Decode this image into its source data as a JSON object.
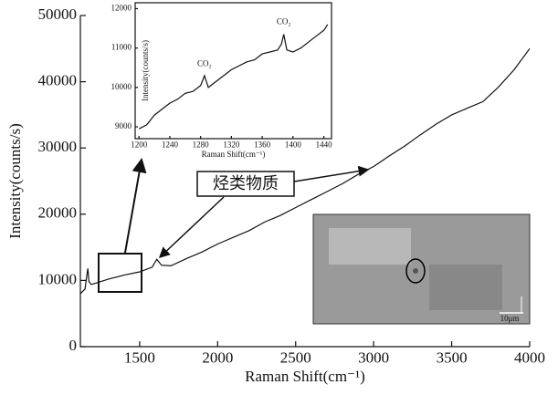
{
  "chart_data": [
    {
      "type": "line",
      "xlabel": "Raman Shift(cm⁻¹)",
      "ylabel": "Intensity(counts/s)",
      "annotations": [
        "烃类物质",
        "10μm"
      ],
      "x": [
        1120,
        1150,
        1160,
        1168,
        1175,
        1190,
        1220,
        1300,
        1400,
        1500,
        1580,
        1610,
        1640,
        1700,
        1800,
        1900,
        2000,
        2100,
        2200,
        2300,
        2400,
        2500,
        2600,
        2700,
        2800,
        2900,
        3000,
        3100,
        3200,
        3300,
        3400,
        3500,
        3600,
        3700,
        3800,
        3900,
        4000
      ],
      "values": [
        8000,
        8700,
        10500,
        11800,
        9800,
        9400,
        9600,
        10200,
        10800,
        11300,
        12000,
        13200,
        12300,
        12200,
        13300,
        14300,
        15500,
        16500,
        17500,
        18800,
        19800,
        21000,
        22200,
        23400,
        24600,
        26000,
        27200,
        28800,
        30300,
        32000,
        33600,
        35000,
        36000,
        37000,
        39200,
        41800,
        45000
      ],
      "color": "#111111",
      "xlim": [
        1120,
        4000
      ],
      "xticks": [
        1500,
        2000,
        2500,
        3000,
        3500,
        4000
      ],
      "ylim": [
        0,
        50000
      ],
      "yticks": [
        0,
        10000,
        20000,
        30000,
        40000,
        50000
      ]
    },
    {
      "type": "line",
      "xlabel": "Raman Shift(cm⁻¹)",
      "ylabel": "Intensity(counts/s)",
      "annotations": [
        "CO₂",
        "CO₂"
      ],
      "x": [
        1200,
        1210,
        1220,
        1230,
        1240,
        1250,
        1260,
        1270,
        1280,
        1285,
        1290,
        1300,
        1310,
        1320,
        1330,
        1340,
        1350,
        1360,
        1370,
        1380,
        1385,
        1388,
        1392,
        1400,
        1410,
        1420,
        1430,
        1440,
        1445
      ],
      "values": [
        8950,
        9050,
        9300,
        9450,
        9600,
        9700,
        9850,
        9900,
        10050,
        10300,
        10000,
        10150,
        10300,
        10450,
        10550,
        10650,
        10700,
        10850,
        10900,
        10950,
        11100,
        11350,
        10950,
        10900,
        11000,
        11150,
        11300,
        11450,
        11600
      ],
      "color": "#111111",
      "xlim": [
        1195,
        1450
      ],
      "xticks": [
        1200,
        1240,
        1280,
        1320,
        1360,
        1400,
        1440
      ],
      "ylim": [
        8700,
        12150
      ],
      "yticks": [
        9000,
        10000,
        11000,
        12000
      ]
    }
  ]
}
